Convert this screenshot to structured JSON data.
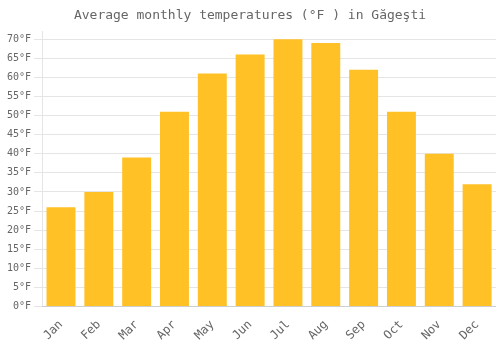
{
  "chart_data": {
    "type": "bar",
    "title": "Average monthly temperatures (°F ) in Găgeşti",
    "categories": [
      "Jan",
      "Feb",
      "Mar",
      "Apr",
      "May",
      "Jun",
      "Jul",
      "Aug",
      "Sep",
      "Oct",
      "Nov",
      "Dec"
    ],
    "values": [
      26,
      30,
      39,
      51,
      61,
      66,
      70,
      69,
      62,
      51,
      40,
      32
    ],
    "color": "#FFC125",
    "ylim": [
      0,
      72
    ],
    "yticks": [
      {
        "value": 0,
        "label": "0°F"
      },
      {
        "value": 5,
        "label": "5°F"
      },
      {
        "value": 10,
        "label": "10°F"
      },
      {
        "value": 15,
        "label": "15°F"
      },
      {
        "value": 20,
        "label": "20°F"
      },
      {
        "value": 25,
        "label": "25°F"
      },
      {
        "value": 30,
        "label": "30°F"
      },
      {
        "value": 35,
        "label": "35°F"
      },
      {
        "value": 40,
        "label": "40°F"
      },
      {
        "value": 45,
        "label": "45°F"
      },
      {
        "value": 50,
        "label": "50°F"
      },
      {
        "value": 55,
        "label": "55°F"
      },
      {
        "value": 60,
        "label": "60°F"
      },
      {
        "value": 65,
        "label": "65°F"
      },
      {
        "value": 70,
        "label": "70°F"
      }
    ],
    "grid": true
  }
}
